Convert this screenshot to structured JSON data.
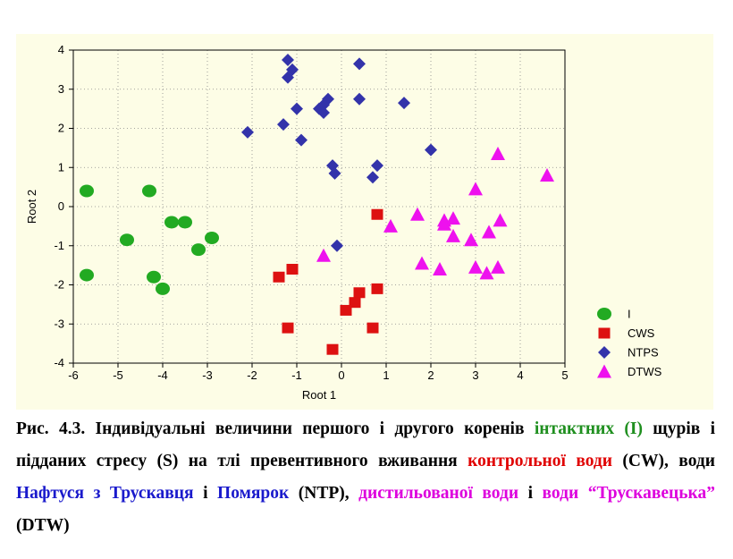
{
  "colors": {
    "panel_bg": "#fdfde6",
    "I": "#22aa22",
    "CWS": "#dd1111",
    "NTPS": "#3333aa",
    "DTWS": "#ee11ee",
    "caption_green": "#1f8f1f",
    "caption_red": "#e00000",
    "caption_blue": "#1a1acc",
    "caption_magenta": "#dd00dd"
  },
  "chart_data": {
    "type": "scatter",
    "xlabel": "Root 1",
    "ylabel": "Root 2",
    "xlim": [
      -6,
      5
    ],
    "ylim": [
      -4,
      4
    ],
    "xticks": [
      -6,
      -5,
      -4,
      -3,
      -2,
      -1,
      0,
      1,
      2,
      3,
      4,
      5
    ],
    "yticks": [
      -4,
      -3,
      -2,
      -1,
      0,
      1,
      2,
      3,
      4
    ],
    "grid": "dotted",
    "legend_position": "bottom-right",
    "series": [
      {
        "name": "I",
        "marker": "circle",
        "color": "#22aa22",
        "x": [
          -5.7,
          -4.3,
          -3.8,
          -3.5,
          -4.8,
          -2.9,
          -3.2,
          -5.7,
          -4.2,
          -4.0
        ],
        "y": [
          0.4,
          0.4,
          -0.4,
          -0.4,
          -0.85,
          -0.8,
          -1.1,
          -1.75,
          -1.8,
          -2.1
        ]
      },
      {
        "name": "CWS",
        "marker": "square",
        "color": "#dd1111",
        "x": [
          0.8,
          -1.1,
          -1.4,
          0.4,
          0.3,
          0.1,
          0.8,
          -1.2,
          0.7,
          -0.2
        ],
        "y": [
          -0.2,
          -1.6,
          -1.8,
          -2.2,
          -2.45,
          -2.65,
          -2.1,
          -3.1,
          -3.1,
          -3.65
        ]
      },
      {
        "name": "NTPS",
        "marker": "diamond",
        "color": "#3333aa",
        "x": [
          -1.2,
          -1.1,
          0.4,
          -1.2,
          -0.3,
          -0.5,
          -0.4,
          -1.0,
          -0.4,
          0.4,
          1.4,
          -2.1,
          -1.3,
          -0.9,
          -0.2,
          -0.15,
          2.0,
          0.8,
          0.7,
          -0.1
        ],
        "y": [
          3.75,
          3.5,
          3.65,
          3.3,
          2.75,
          2.5,
          2.6,
          2.5,
          2.4,
          2.75,
          2.65,
          1.9,
          2.1,
          1.7,
          1.05,
          0.85,
          1.45,
          1.05,
          0.75,
          -1.0
        ]
      },
      {
        "name": "DTWS",
        "marker": "triangle",
        "color": "#ee11ee",
        "x": [
          4.6,
          3.5,
          3.0,
          1.7,
          1.1,
          2.3,
          2.5,
          2.3,
          3.55,
          3.3,
          2.5,
          2.9,
          -0.4,
          1.8,
          2.2,
          3.0,
          3.25,
          3.5
        ],
        "y": [
          0.8,
          1.35,
          0.45,
          -0.2,
          -0.5,
          -0.35,
          -0.3,
          -0.45,
          -0.35,
          -0.65,
          -0.75,
          -0.85,
          -1.25,
          -1.45,
          -1.6,
          -1.55,
          -1.7,
          -1.55
        ]
      }
    ]
  },
  "caption": {
    "segments": [
      {
        "text": "Рис. 4.3. Індивідуальні величини першого і другого коренів ",
        "color": "#000000"
      },
      {
        "text": "інтактних (І)",
        "color": "#1f8f1f"
      },
      {
        "text": " щурів і підданих стресу (S) на тлі превентивного вживання ",
        "color": "#000000"
      },
      {
        "text": "контрольної води",
        "color": "#e00000"
      },
      {
        "text": " (CW), води ",
        "color": "#000000"
      },
      {
        "text": "Нафтуся з Трускавця",
        "color": "#1a1acc"
      },
      {
        "text": " і ",
        "color": "#000000"
      },
      {
        "text": "Помярок",
        "color": "#1a1acc"
      },
      {
        "text": " (NTP), ",
        "color": "#000000"
      },
      {
        "text": "дистильованої води",
        "color": "#dd00dd"
      },
      {
        "text": " і ",
        "color": "#000000"
      },
      {
        "text": "води “Трускавецька”",
        "color": "#dd00dd"
      },
      {
        "text": " (DTW)",
        "color": "#000000"
      }
    ]
  }
}
